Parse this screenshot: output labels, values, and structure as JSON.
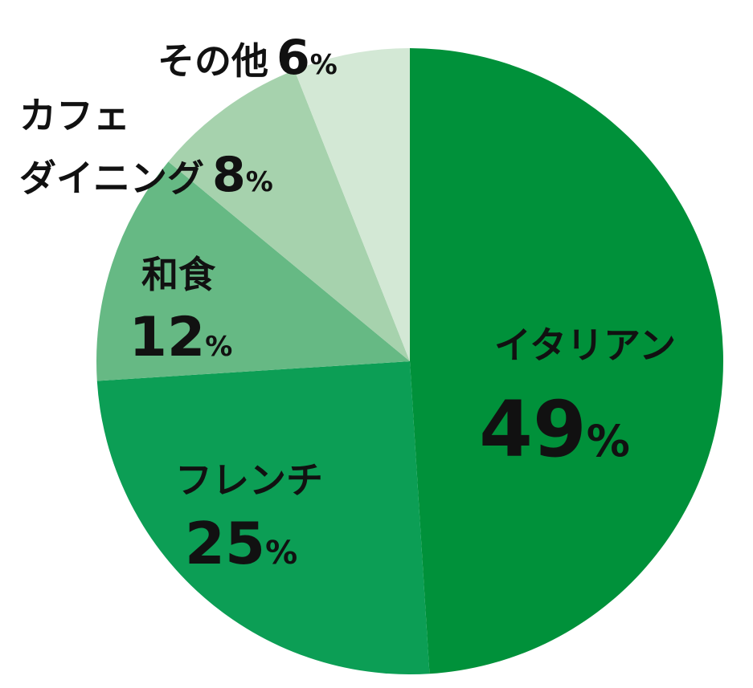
{
  "chart_data": {
    "type": "pie",
    "title": "",
    "categories": [
      "イタリアン",
      "フレンチ",
      "和食",
      "カフェダイニング",
      "その他"
    ],
    "values": [
      49,
      25,
      12,
      8,
      6
    ],
    "value_suffix": "%",
    "slices": [
      {
        "label": "イタリアン",
        "value": 49,
        "display_value": "49",
        "color": "#00913a"
      },
      {
        "label": "フレンチ",
        "value": 25,
        "display_value": "25",
        "color": "#0c9e55"
      },
      {
        "label": "和食",
        "value": 12,
        "display_value": "12",
        "color": "#66b984"
      },
      {
        "label_lines": [
          "カフェ",
          "ダイニング"
        ],
        "value": 8,
        "display_value": "8",
        "color": "#a6d2ad"
      },
      {
        "label": "その他",
        "value": 6,
        "display_value": "6",
        "color": "#d3e8d5"
      }
    ],
    "start": "12 o'clock",
    "direction": "clockwise",
    "legend": "none",
    "labels": "on slices and outside"
  }
}
